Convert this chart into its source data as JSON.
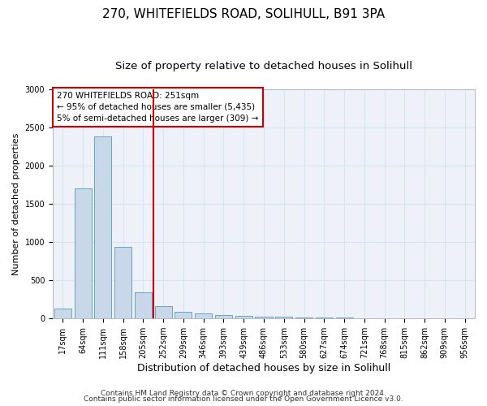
{
  "title1": "270, WHITEFIELDS ROAD, SOLIHULL, B91 3PA",
  "title2": "Size of property relative to detached houses in Solihull",
  "xlabel": "Distribution of detached houses by size in Solihull",
  "ylabel": "Number of detached properties",
  "categories": [
    "17sqm",
    "64sqm",
    "111sqm",
    "158sqm",
    "205sqm",
    "252sqm",
    "299sqm",
    "346sqm",
    "393sqm",
    "439sqm",
    "486sqm",
    "533sqm",
    "580sqm",
    "627sqm",
    "674sqm",
    "721sqm",
    "768sqm",
    "815sqm",
    "862sqm",
    "909sqm",
    "956sqm"
  ],
  "values": [
    130,
    1700,
    2380,
    940,
    340,
    160,
    90,
    70,
    50,
    30,
    25,
    20,
    15,
    10,
    8,
    5,
    3,
    2,
    1,
    1,
    1
  ],
  "bar_color": "#c8d8e8",
  "bar_edge_color": "#5599bb",
  "grid_color": "#d8e4f0",
  "background_color": "#eef2f8",
  "vline_index": 5,
  "vline_color": "#cc0000",
  "annotation_text": "270 WHITEFIELDS ROAD: 251sqm\n← 95% of detached houses are smaller (5,435)\n5% of semi-detached houses are larger (309) →",
  "annotation_box_color": "#ffffff",
  "annotation_box_edge": "#cc0000",
  "footer1": "Contains HM Land Registry data © Crown copyright and database right 2024.",
  "footer2": "Contains public sector information licensed under the Open Government Licence v3.0.",
  "ylim": [
    0,
    3000
  ],
  "yticks": [
    0,
    500,
    1000,
    1500,
    2000,
    2500,
    3000
  ],
  "title1_fontsize": 11,
  "title2_fontsize": 9.5,
  "xlabel_fontsize": 9,
  "ylabel_fontsize": 8,
  "tick_fontsize": 7,
  "annotation_fontsize": 7.5,
  "footer_fontsize": 6.5
}
